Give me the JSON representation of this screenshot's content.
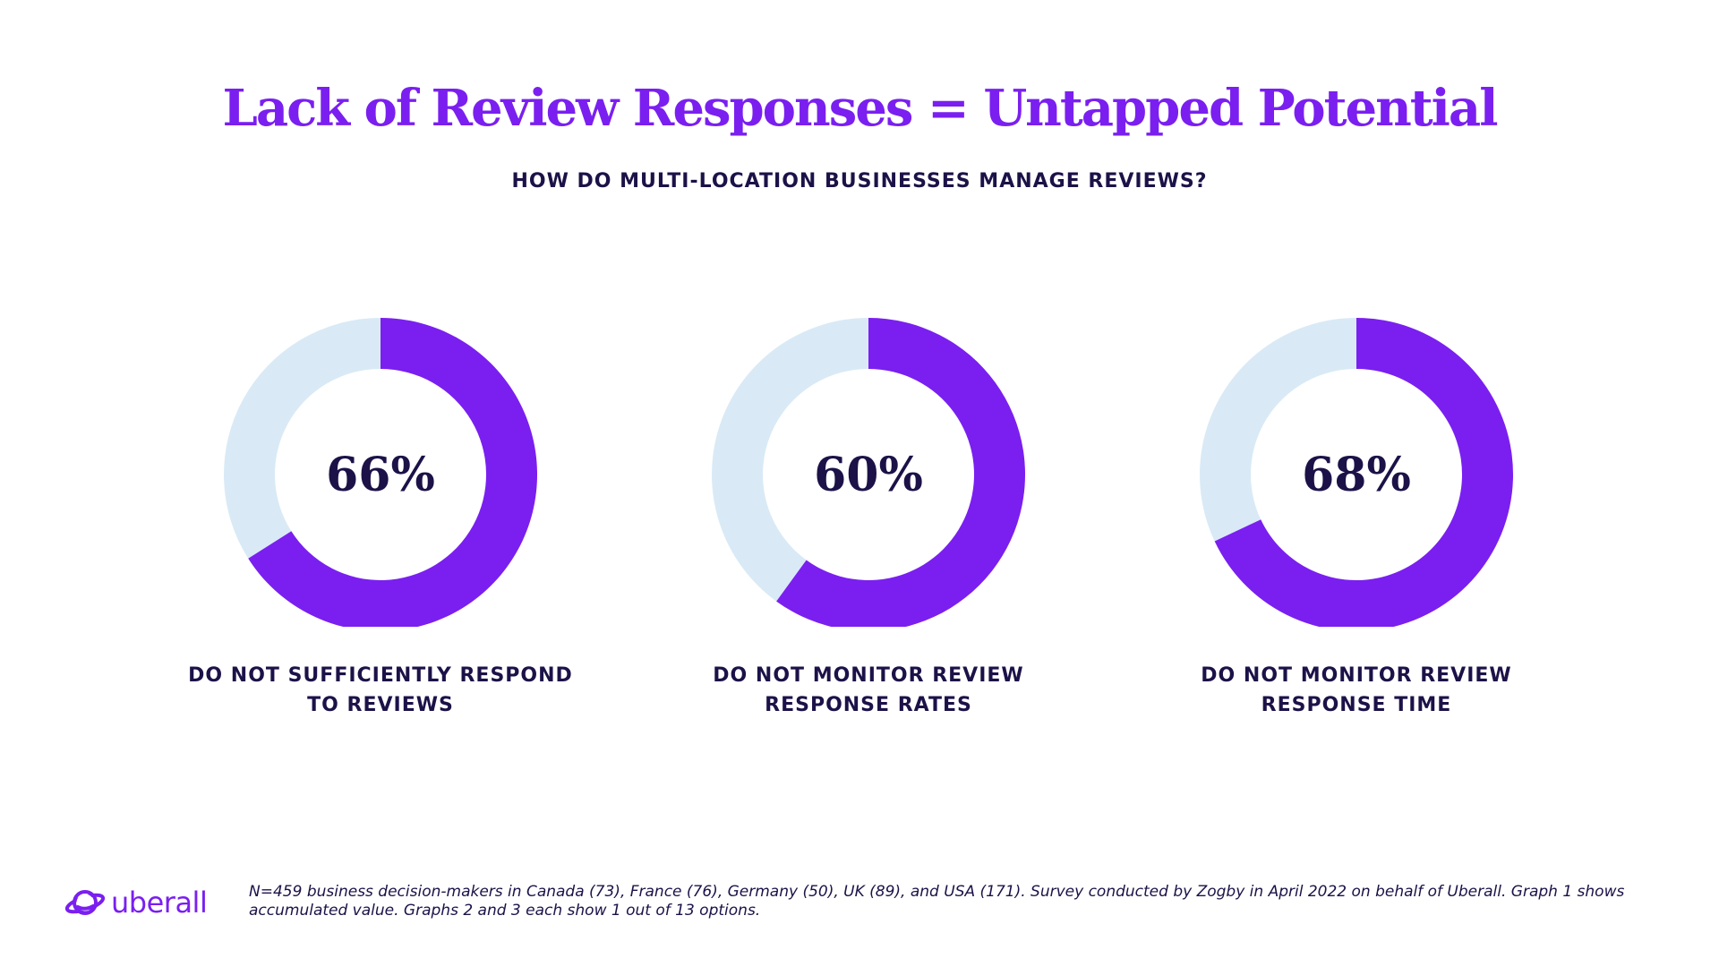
{
  "header": {
    "title": "Lack of Review Responses = Untapped Potential",
    "subtitle": "HOW DO MULTI-LOCATION BUSINESSES MANAGE REVIEWS?"
  },
  "colors": {
    "value": "#7a1ff0",
    "remainder": "#d9eaf6",
    "text": "#1c1248"
  },
  "chart_data": [
    {
      "type": "pie",
      "variant": "donut",
      "value_label": "66%",
      "values": [
        66,
        34
      ],
      "caption": [
        "DO NOT SUFFICIENTLY RESPOND",
        "TO REVIEWS"
      ]
    },
    {
      "type": "pie",
      "variant": "donut",
      "value_label": "60%",
      "values": [
        60,
        40
      ],
      "caption": [
        "DO NOT MONITOR REVIEW",
        "RESPONSE RATES"
      ]
    },
    {
      "type": "pie",
      "variant": "donut",
      "value_label": "68%",
      "values": [
        68,
        32
      ],
      "caption": [
        "DO NOT MONITOR REVIEW",
        "RESPONSE TIME"
      ]
    }
  ],
  "footer": {
    "logo_text": "uberall",
    "logo_icon": "planet-icon",
    "note": "N=459 business decision-makers in Canada (73), France (76), Germany (50), UK (89), and USA (171). Survey conducted by Zogby in April 2022 on behalf of Uberall. Graph 1 shows accumulated value. Graphs 2 and 3 each show 1 out of 13 options."
  }
}
